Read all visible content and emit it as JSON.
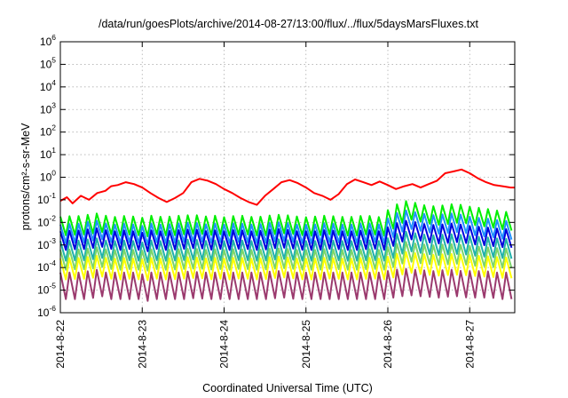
{
  "chart_data": {
    "type": "line",
    "title": "/data/run/goesPlots/archive/2014-08-27/13:00/flux/../flux/5daysMarsFluxes.txt",
    "xlabel": "Coordinated Universal Time (UTC)",
    "ylabel": "protons/cm²-s-sr-MeV",
    "y_scale": "log",
    "ylim": [
      1e-06,
      1000000.0
    ],
    "xlim": [
      "2014-08-22",
      "2014-08-27 13:00"
    ],
    "grid": true,
    "legend": "none",
    "x_ticks": [
      "2014-8-22",
      "2014-8-23",
      "2014-8-24",
      "2014-8-25",
      "2014-8-26",
      "2014-8-27"
    ],
    "y_ticks": [
      {
        "base": "10",
        "exp": "-6"
      },
      {
        "base": "10",
        "exp": "-5"
      },
      {
        "base": "10",
        "exp": "-4"
      },
      {
        "base": "10",
        "exp": "-3"
      },
      {
        "base": "10",
        "exp": "-2"
      },
      {
        "base": "10",
        "exp": "-1"
      },
      {
        "base": "10",
        "exp": "0"
      },
      {
        "base": "10",
        "exp": "1"
      },
      {
        "base": "10",
        "exp": "2"
      },
      {
        "base": "10",
        "exp": "3"
      },
      {
        "base": "10",
        "exp": "4"
      },
      {
        "base": "10",
        "exp": "5"
      },
      {
        "base": "10",
        "exp": "6"
      }
    ],
    "x_days": [
      0.0,
      0.08,
      0.15,
      0.25,
      0.35,
      0.45,
      0.55,
      0.62,
      0.7,
      0.8,
      0.9,
      1.0,
      1.1,
      1.2,
      1.3,
      1.4,
      1.5,
      1.6,
      1.7,
      1.8,
      1.9,
      2.0,
      2.1,
      2.2,
      2.3,
      2.4,
      2.5,
      2.6,
      2.7,
      2.8,
      2.9,
      3.0,
      3.1,
      3.2,
      3.3,
      3.4,
      3.5,
      3.6,
      3.7,
      3.8,
      3.9,
      4.0,
      4.1,
      4.2,
      4.3,
      4.4,
      4.5,
      4.6,
      4.7,
      4.8,
      4.9,
      5.0,
      5.1,
      5.2,
      5.3,
      5.4,
      5.5,
      5.55
    ],
    "series": [
      {
        "color": "#ff0000",
        "values": [
          0.09,
          0.13,
          0.07,
          0.15,
          0.1,
          0.2,
          0.25,
          0.4,
          0.45,
          0.6,
          0.5,
          0.35,
          0.2,
          0.12,
          0.08,
          0.12,
          0.2,
          0.6,
          0.85,
          0.7,
          0.5,
          0.3,
          0.2,
          0.12,
          0.08,
          0.06,
          0.15,
          0.3,
          0.6,
          0.75,
          0.55,
          0.35,
          0.2,
          0.15,
          0.1,
          0.18,
          0.5,
          0.8,
          0.6,
          0.45,
          0.65,
          0.45,
          0.3,
          0.4,
          0.5,
          0.35,
          0.5,
          0.7,
          1.5,
          1.8,
          2.2,
          1.5,
          0.9,
          0.6,
          0.45,
          0.4,
          0.35,
          0.35
        ]
      },
      {
        "color": "#00ee00",
        "min": 0.003,
        "max": 0.02,
        "values": [
          0.018,
          0.02,
          0.017,
          0.02,
          0.022,
          0.025,
          0.02,
          0.018,
          0.017,
          0.02,
          0.018,
          0.016,
          0.02,
          0.018,
          0.017,
          0.02,
          0.019,
          0.022,
          0.02,
          0.018,
          0.02,
          0.017,
          0.019,
          0.02,
          0.018,
          0.017,
          0.019,
          0.021,
          0.022,
          0.02,
          0.018,
          0.017,
          0.018,
          0.02,
          0.019,
          0.018,
          0.017,
          0.018,
          0.02,
          0.019,
          0.017,
          0.035,
          0.06,
          0.09,
          0.08,
          0.06,
          0.055,
          0.05,
          0.06,
          0.065,
          0.06,
          0.05,
          0.045,
          0.04,
          0.035,
          0.03,
          0.028,
          0.02
        ]
      },
      {
        "color": "#1e90ff",
        "min": 0.0015,
        "max": 0.01,
        "values": [
          0.008,
          0.009,
          0.008,
          0.009,
          0.011,
          0.012,
          0.009,
          0.008,
          0.008,
          0.009,
          0.008,
          0.007,
          0.009,
          0.008,
          0.008,
          0.009,
          0.009,
          0.01,
          0.009,
          0.008,
          0.009,
          0.008,
          0.009,
          0.009,
          0.008,
          0.008,
          0.009,
          0.01,
          0.01,
          0.009,
          0.008,
          0.008,
          0.008,
          0.009,
          0.009,
          0.008,
          0.008,
          0.008,
          0.009,
          0.009,
          0.008,
          0.015,
          0.025,
          0.035,
          0.03,
          0.025,
          0.022,
          0.02,
          0.024,
          0.025,
          0.022,
          0.018,
          0.016,
          0.015,
          0.013,
          0.012,
          0.011,
          0.008
        ]
      },
      {
        "color": "#0000dd",
        "min": 0.0006,
        "max": 0.004,
        "values": [
          0.004,
          0.0045,
          0.004,
          0.0045,
          0.005,
          0.0055,
          0.0045,
          0.004,
          0.004,
          0.0045,
          0.004,
          0.0035,
          0.0045,
          0.004,
          0.004,
          0.0045,
          0.0045,
          0.005,
          0.0045,
          0.004,
          0.0045,
          0.004,
          0.0045,
          0.0045,
          0.004,
          0.004,
          0.0045,
          0.005,
          0.005,
          0.0045,
          0.004,
          0.004,
          0.004,
          0.0045,
          0.0045,
          0.004,
          0.004,
          0.004,
          0.0045,
          0.0045,
          0.004,
          0.006,
          0.009,
          0.012,
          0.011,
          0.009,
          0.008,
          0.0075,
          0.0085,
          0.009,
          0.008,
          0.007,
          0.0065,
          0.006,
          0.0055,
          0.005,
          0.005,
          0.004
        ]
      },
      {
        "color": "#20b2aa",
        "min": 0.0002,
        "max": 0.0015,
        "values": [
          0.0015,
          0.0016,
          0.0015,
          0.0016,
          0.0018,
          0.002,
          0.0016,
          0.0015,
          0.0015,
          0.0016,
          0.0015,
          0.0013,
          0.0016,
          0.0015,
          0.0015,
          0.0016,
          0.0016,
          0.0018,
          0.0016,
          0.0015,
          0.0016,
          0.0015,
          0.0016,
          0.0016,
          0.0015,
          0.0015,
          0.0016,
          0.0018,
          0.0018,
          0.0016,
          0.0015,
          0.0015,
          0.0015,
          0.0016,
          0.0016,
          0.0015,
          0.0015,
          0.0015,
          0.0016,
          0.0016,
          0.0015,
          0.002,
          0.003,
          0.004,
          0.0035,
          0.003,
          0.0028,
          0.0026,
          0.003,
          0.003,
          0.0028,
          0.0025,
          0.0023,
          0.0022,
          0.002,
          0.0019,
          0.0018,
          0.0015
        ]
      },
      {
        "color": "#7cd66a",
        "min": 8e-05,
        "max": 0.0006,
        "values": [
          0.0006,
          0.00065,
          0.0006,
          0.00065,
          0.0007,
          0.0008,
          0.00065,
          0.0006,
          0.0006,
          0.00065,
          0.0006,
          0.00055,
          0.00065,
          0.0006,
          0.0006,
          0.00065,
          0.00065,
          0.0007,
          0.00065,
          0.0006,
          0.00065,
          0.0006,
          0.00065,
          0.00065,
          0.0006,
          0.0006,
          0.00065,
          0.0007,
          0.0007,
          0.00065,
          0.0006,
          0.0006,
          0.0006,
          0.00065,
          0.00065,
          0.0006,
          0.0006,
          0.0006,
          0.00065,
          0.00065,
          0.0006,
          0.0008,
          0.0011,
          0.0014,
          0.0012,
          0.0011,
          0.001,
          0.00095,
          0.0011,
          0.0011,
          0.001,
          0.0009,
          0.00085,
          0.0008,
          0.00075,
          0.0007,
          0.0007,
          0.0006
        ]
      },
      {
        "color": "#ffff00",
        "min": 3e-05,
        "max": 0.00025,
        "values": [
          0.00025,
          0.00027,
          0.00025,
          0.00027,
          0.0003,
          0.00033,
          0.00027,
          0.00025,
          0.00025,
          0.00027,
          0.00025,
          0.00023,
          0.00027,
          0.00025,
          0.00025,
          0.00027,
          0.00027,
          0.0003,
          0.00027,
          0.00025,
          0.00027,
          0.00025,
          0.00027,
          0.00027,
          0.00025,
          0.00025,
          0.00027,
          0.0003,
          0.0003,
          0.00027,
          0.00025,
          0.00025,
          0.00025,
          0.00027,
          0.00027,
          0.00025,
          0.00025,
          0.00025,
          0.00027,
          0.00027,
          0.00025,
          0.0003,
          0.0004,
          0.0005,
          0.00045,
          0.0004,
          0.00038,
          0.00036,
          0.0004,
          0.0004,
          0.00038,
          0.00035,
          0.00033,
          0.00032,
          0.0003,
          0.00028,
          0.00028,
          0.00025
        ]
      },
      {
        "color": "#9b3a6e",
        "min": 4e-06,
        "max": 6e-05,
        "values": [
          6e-05,
          6e-05,
          6e-05,
          6e-05,
          7e-05,
          8e-05,
          6e-05,
          6e-05,
          6e-05,
          6e-05,
          6e-05,
          5e-05,
          6e-05,
          6e-05,
          6e-05,
          6e-05,
          6e-05,
          7e-05,
          6e-05,
          6e-05,
          6e-05,
          6e-05,
          6e-05,
          6e-05,
          6e-05,
          6e-05,
          6e-05,
          7e-05,
          7e-05,
          6e-05,
          6e-05,
          6e-05,
          6e-05,
          6e-05,
          6e-05,
          6e-05,
          6e-05,
          6e-05,
          6e-05,
          6e-05,
          6e-05,
          7e-05,
          8e-05,
          9e-05,
          8e-05,
          8e-05,
          7e-05,
          7e-05,
          8e-05,
          8e-05,
          7e-05,
          7e-05,
          7e-05,
          7e-05,
          6e-05,
          6e-05,
          6e-05,
          5e-05
        ]
      }
    ]
  }
}
